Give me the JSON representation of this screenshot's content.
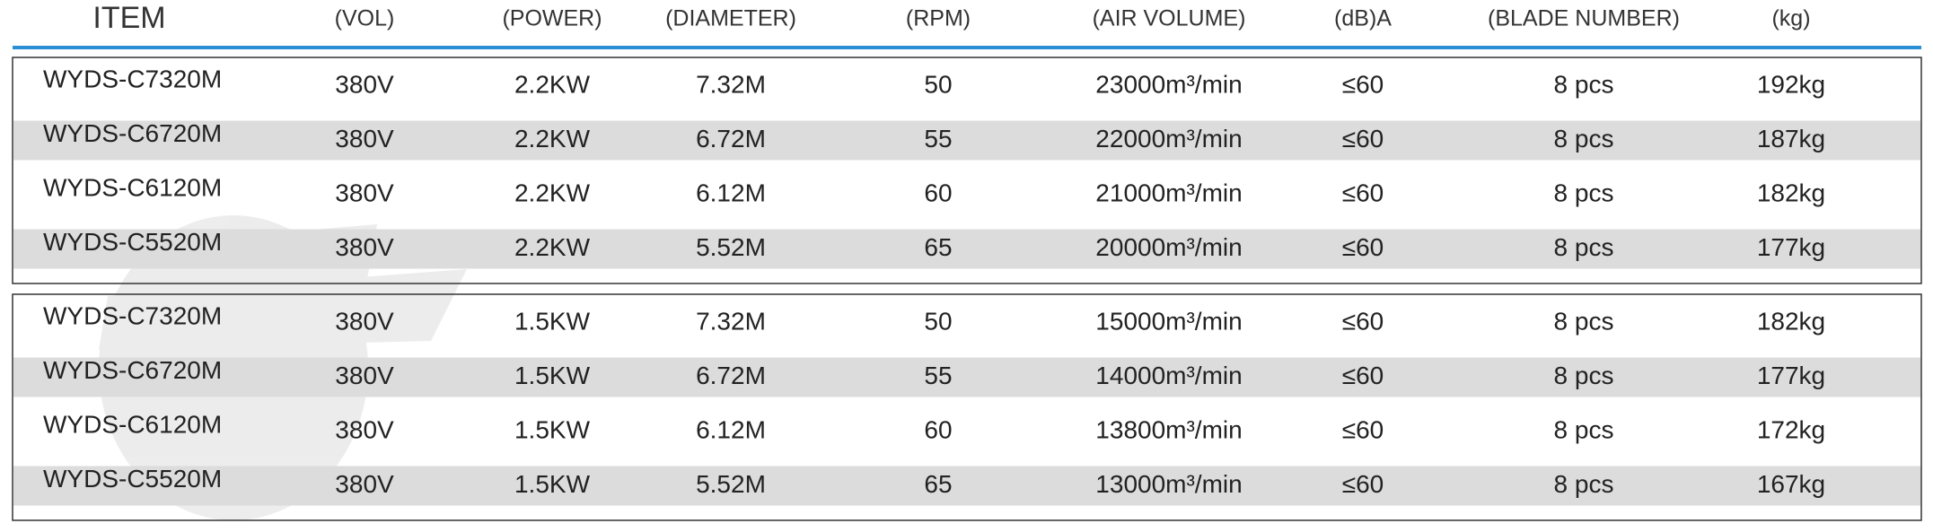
{
  "table": {
    "header": [
      "ITEM",
      "(VOL)",
      "(POWER)",
      "(DIAMETER)",
      "(RPM)",
      "(AIR VOLUME)",
      "(dB)A",
      "(BLADE NUMBER)",
      "(kg)"
    ],
    "groups": [
      {
        "rows": [
          [
            "WYDS-C7320M",
            "380V",
            "2.2KW",
            "7.32M",
            "50",
            "23000m³/min",
            "≤60",
            "8 pcs",
            "192kg"
          ],
          [
            "WYDS-C6720M",
            "380V",
            "2.2KW",
            "6.72M",
            "55",
            "22000m³/min",
            "≤60",
            "8 pcs",
            "187kg"
          ],
          [
            "WYDS-C6120M",
            "380V",
            "2.2KW",
            "6.12M",
            "60",
            "21000m³/min",
            "≤60",
            "8 pcs",
            "182kg"
          ],
          [
            "WYDS-C5520M",
            "380V",
            "2.2KW",
            "5.52M",
            "65",
            "20000m³/min",
            "≤60",
            "8 pcs",
            "177kg"
          ]
        ]
      },
      {
        "rows": [
          [
            "WYDS-C7320M",
            "380V",
            "1.5KW",
            "7.32M",
            "50",
            "15000m³/min",
            "≤60",
            "8 pcs",
            "182kg"
          ],
          [
            "WYDS-C6720M",
            "380V",
            "1.5KW",
            "6.72M",
            "55",
            "14000m³/min",
            "≤60",
            "8 pcs",
            "177kg"
          ],
          [
            "WYDS-C6120M",
            "380V",
            "1.5KW",
            "6.12M",
            "60",
            "13800m³/min",
            "≤60",
            "8 pcs",
            "172kg"
          ],
          [
            "WYDS-C5520M",
            "380V",
            "1.5KW",
            "5.52M",
            "65",
            "13000m³/min",
            "≤60",
            "8 pcs",
            "167kg"
          ]
        ]
      }
    ]
  }
}
